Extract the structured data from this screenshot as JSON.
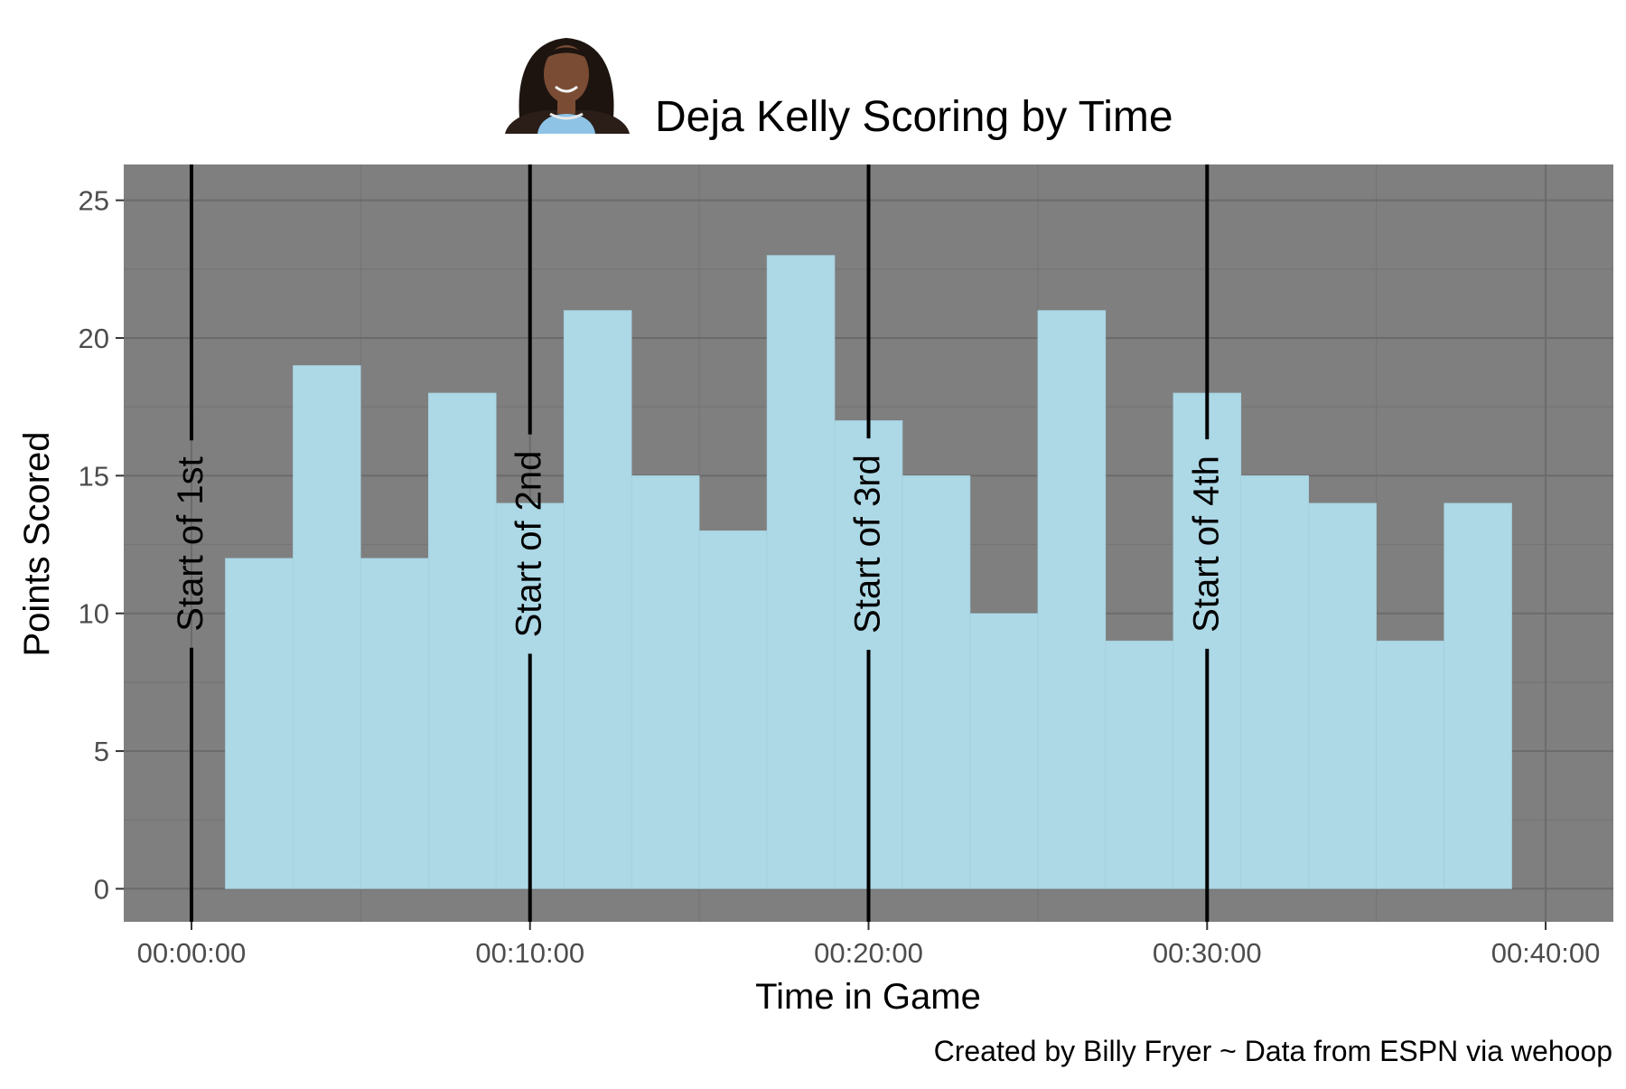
{
  "chart_data": {
    "type": "bar",
    "title": "Deja Kelly Scoring by Time",
    "xlabel": "Time in Game",
    "ylabel": "Points Scored",
    "caption": "Created by Billy Fryer ~ Data from ESPN via wehoop",
    "xlim_minutes": [
      -2,
      42
    ],
    "ylim": [
      -1.2,
      26.3
    ],
    "x_ticks": [
      {
        "minute": 0,
        "label": "00:00:00"
      },
      {
        "minute": 10,
        "label": "00:10:00"
      },
      {
        "minute": 20,
        "label": "00:20:00"
      },
      {
        "minute": 30,
        "label": "00:30:00"
      },
      {
        "minute": 40,
        "label": "00:40:00"
      }
    ],
    "y_ticks": [
      0,
      5,
      10,
      15,
      20,
      25
    ],
    "bin_width_minutes": 2,
    "bins": [
      {
        "start_minute": 1,
        "value": 12
      },
      {
        "start_minute": 3,
        "value": 19
      },
      {
        "start_minute": 5,
        "value": 12
      },
      {
        "start_minute": 7,
        "value": 18
      },
      {
        "start_minute": 9,
        "value": 14
      },
      {
        "start_minute": 11,
        "value": 21
      },
      {
        "start_minute": 13,
        "value": 15
      },
      {
        "start_minute": 15,
        "value": 13
      },
      {
        "start_minute": 17,
        "value": 23
      },
      {
        "start_minute": 19,
        "value": 17
      },
      {
        "start_minute": 21,
        "value": 15
      },
      {
        "start_minute": 23,
        "value": 10
      },
      {
        "start_minute": 25,
        "value": 21
      },
      {
        "start_minute": 27,
        "value": 9
      },
      {
        "start_minute": 29,
        "value": 18
      },
      {
        "start_minute": 31,
        "value": 15
      },
      {
        "start_minute": 33,
        "value": 14
      },
      {
        "start_minute": 35,
        "value": 9
      },
      {
        "start_minute": 37,
        "value": 14
      }
    ],
    "quarter_markers": [
      {
        "minute": 0,
        "label": "Start of 1st"
      },
      {
        "minute": 10,
        "label": "Start of 2nd"
      },
      {
        "minute": 20,
        "label": "Start of 3rd"
      },
      {
        "minute": 30,
        "label": "Start of 4th"
      }
    ],
    "grid": true,
    "colors": {
      "panel": "#7f7f7f",
      "grid_major": "#6b6b6b",
      "grid_minor": "#757575",
      "bar": "#add8e6",
      "marker": "#000000"
    }
  }
}
